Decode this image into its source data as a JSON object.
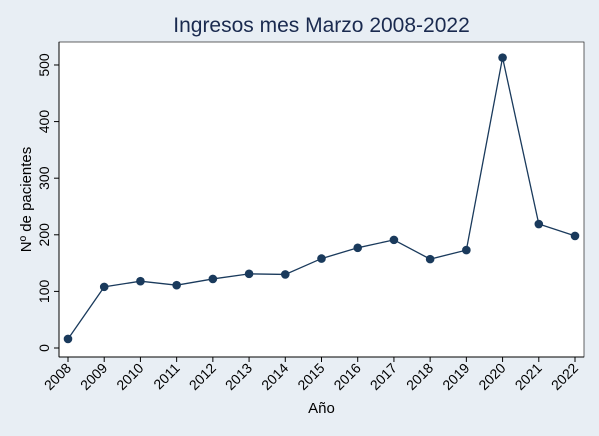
{
  "chart_data": {
    "type": "line",
    "title": "Ingresos mes Marzo 2008-2022",
    "xlabel": "Año",
    "ylabel": "Nº de pacientes",
    "x": [
      "2008",
      "2009",
      "2010",
      "2011",
      "2012",
      "2013",
      "2014",
      "2015",
      "2016",
      "2017",
      "2018",
      "2019",
      "2020",
      "2021",
      "2022"
    ],
    "series": [
      {
        "values": [
          16,
          108,
          118,
          111,
          122,
          131,
          130,
          158,
          177,
          191,
          157,
          173,
          513,
          219,
          198
        ]
      }
    ],
    "ylim": [
      0,
      530
    ],
    "yticks": [
      0,
      100,
      200,
      300,
      400,
      500
    ],
    "grid": false,
    "legend": "none",
    "colors": {
      "background": "#e8eef4",
      "plot_background": "#ffffff",
      "line": "#1a3a5c",
      "marker": "#1a3a5c",
      "title": "#1a2a4f"
    }
  }
}
